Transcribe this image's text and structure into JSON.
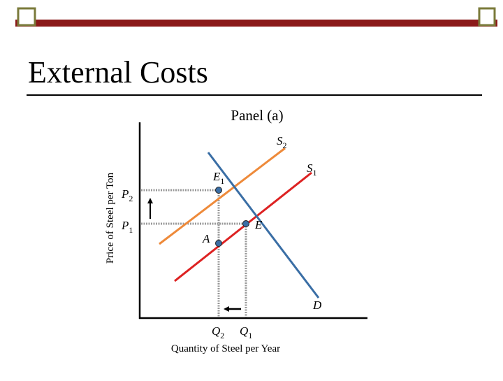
{
  "header": {
    "title": "External Costs"
  },
  "diagram": {
    "panel_title": "Panel (a)",
    "y_axis_label": "Price of Steel per Ton",
    "x_axis_label": "Quantity of Steel per Year",
    "curves": [
      {
        "main": "S",
        "sub": "2"
      },
      {
        "main": "S",
        "sub": "1"
      },
      {
        "main": "D"
      }
    ],
    "points": [
      {
        "main": "E",
        "sub": "1"
      },
      {
        "main": "E"
      },
      {
        "main": "A"
      }
    ],
    "prices": [
      {
        "main": "P",
        "sub": "2"
      },
      {
        "main": "P",
        "sub": "1"
      }
    ],
    "quantities": [
      {
        "main": "Q",
        "sub": "2"
      },
      {
        "main": "Q",
        "sub": "1"
      }
    ]
  }
}
